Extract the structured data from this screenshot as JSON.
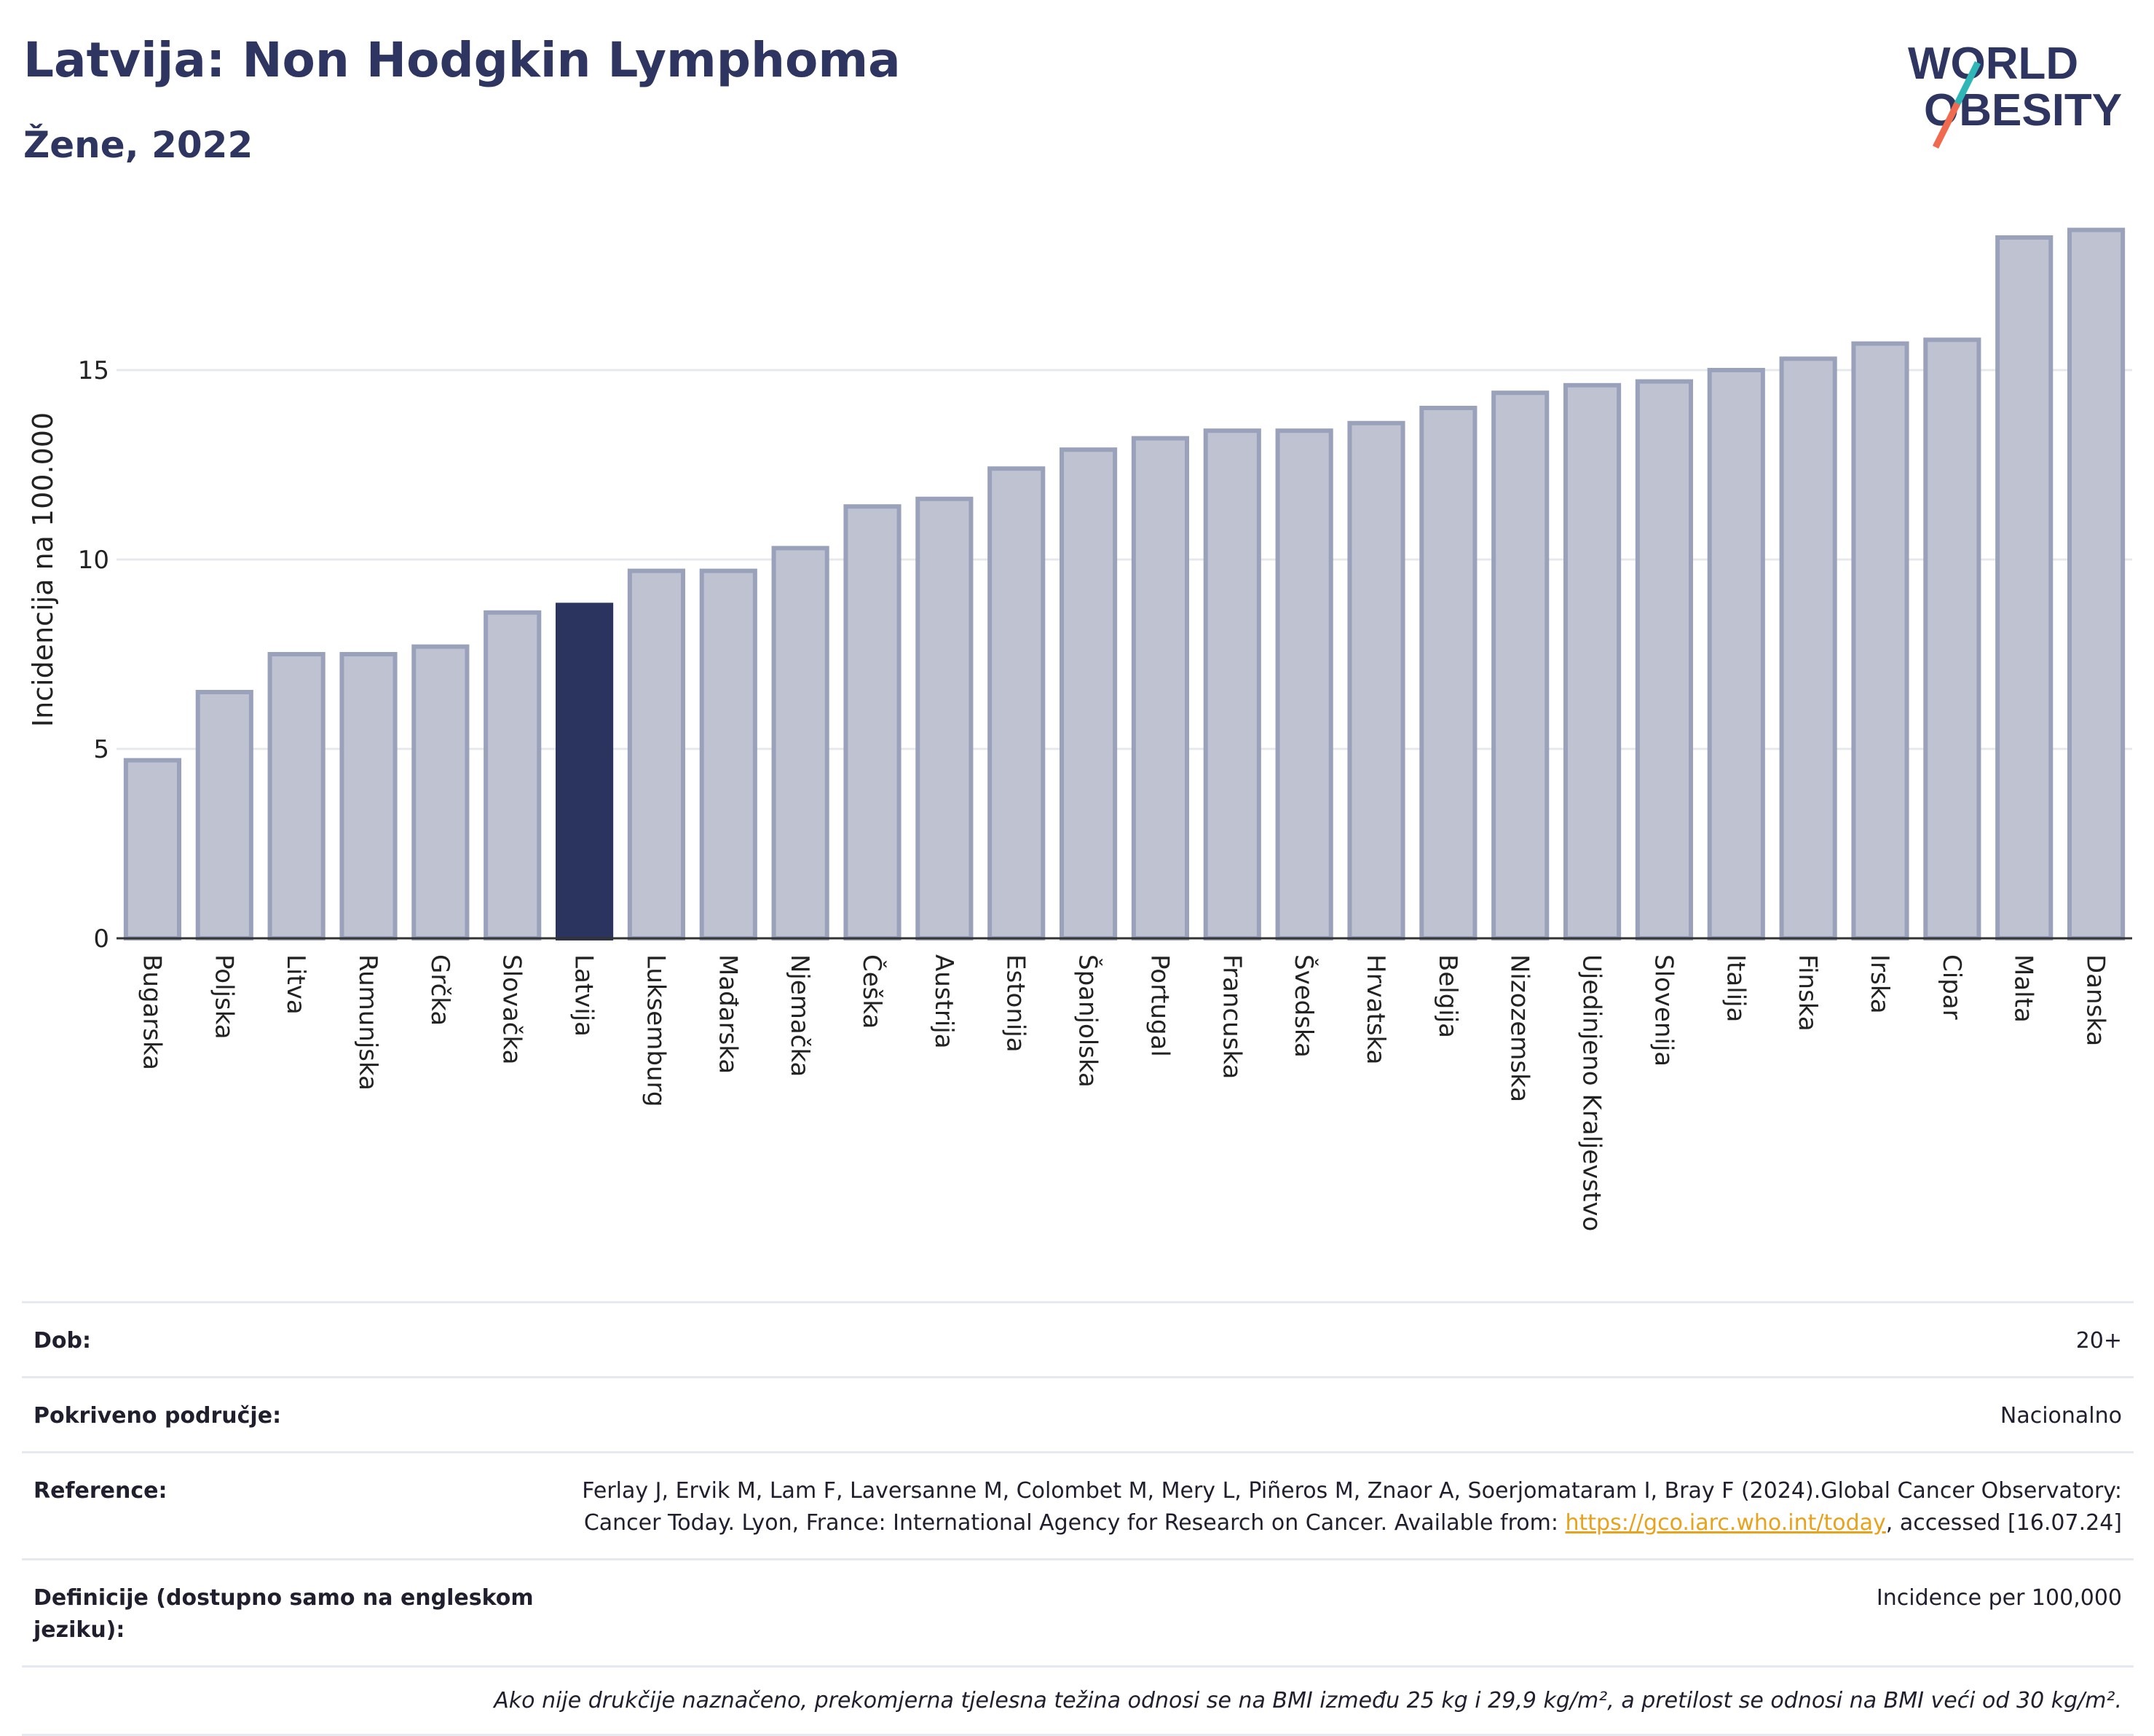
{
  "header": {
    "title": "Latvija: Non Hodgkin Lymphoma",
    "subtitle": "Žene, 2022"
  },
  "logo": {
    "line1": "WORLD",
    "line2": "OBESITY",
    "accent_colors": [
      "#2fb6b7",
      "#ef6a4f"
    ]
  },
  "chart_data": {
    "type": "bar",
    "title": "Latvija: Non Hodgkin Lymphoma",
    "subtitle": "Žene, 2022",
    "ylabel": "Incidencija na 100.000",
    "xlabel": "",
    "ylim": [
      0,
      19
    ],
    "yticks": [
      0,
      5,
      10,
      15
    ],
    "grid": true,
    "highlight": "Latvija",
    "colors": {
      "bar": "#bfc3d1",
      "bar_border": "#9aa1bb",
      "highlight": "#2b345f"
    },
    "categories": [
      "Bugarska",
      "Poljska",
      "Litva",
      "Rumunjska",
      "Grčka",
      "Slovačka",
      "Latvija",
      "Luksemburg",
      "Mađarska",
      "Njemačka",
      "Češka",
      "Austrija",
      "Estonija",
      "Španjolska",
      "Portugal",
      "Francuska",
      "Švedska",
      "Hrvatska",
      "Belgija",
      "Nizozemska",
      "Ujedinjeno Kraljevstvo",
      "Slovenija",
      "Italija",
      "Finska",
      "Irska",
      "Cipar",
      "Malta",
      "Danska"
    ],
    "values": [
      4.7,
      6.5,
      7.5,
      7.5,
      7.7,
      8.6,
      8.8,
      9.7,
      9.7,
      10.3,
      11.4,
      11.6,
      12.4,
      12.9,
      13.2,
      13.4,
      13.4,
      13.6,
      14.0,
      14.4,
      14.6,
      14.7,
      15.0,
      15.3,
      15.7,
      15.8,
      18.5,
      18.7
    ]
  },
  "info": {
    "rows": [
      {
        "label": "Dob:",
        "value": "20+"
      },
      {
        "label": "Pokriveno područje:",
        "value": "Nacionalno"
      },
      {
        "label": "Reference:",
        "value_pre": "Ferlay J, Ervik M, Lam F, Laversanne M, Colombet M, Mery L, Piñeros M, Znaor A, Soerjomataram I, Bray F (2024).Global Cancer Observatory: Cancer Today. Lyon, France: International Agency for Research on Cancer. Available from: ",
        "link": "https://gco.iarc.who.int/today",
        "value_post": ", accessed [16.07.24]"
      },
      {
        "label": "Definicije (dostupno samo na engleskom jeziku):",
        "value": "Incidence per 100,000"
      }
    ],
    "note": "Ako nije drukčije naznačeno, prekomjerna tjelesna težina odnosi se na BMI između 25 kg i 29,9 kg/m², a pretilost se odnosi na BMI veći od 30 kg/m²."
  }
}
